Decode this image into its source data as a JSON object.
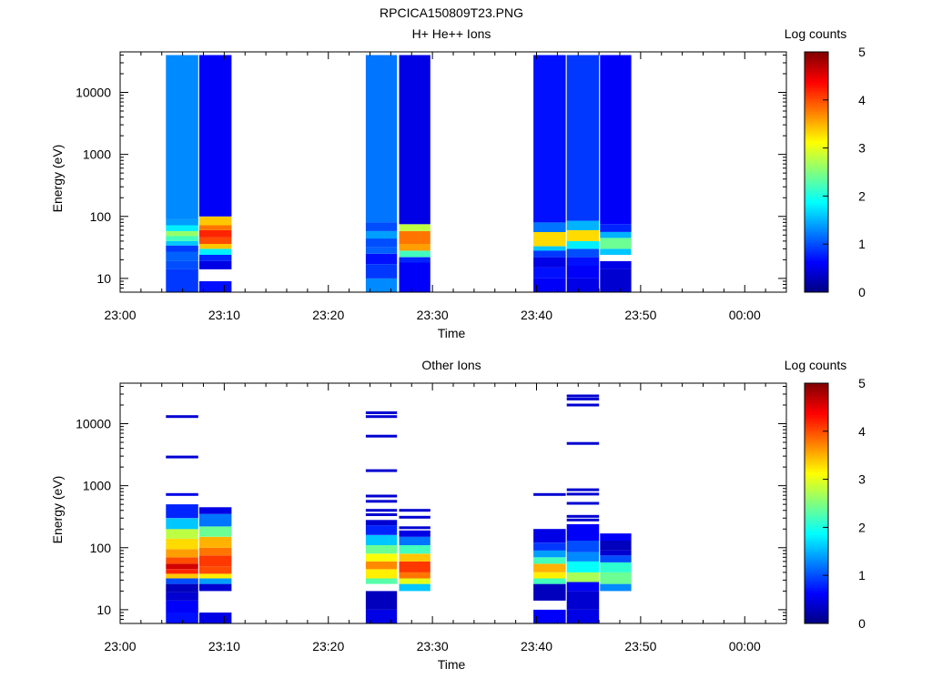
{
  "figure_title": "RPCICA150809T23.PNG",
  "panels": [
    {
      "title": "H+ He++ Ions",
      "ylabel": "Energy (eV)",
      "xlabel": "Time",
      "colorbar_label": "Log counts",
      "xticks": [
        "23:00",
        "23:10",
        "23:20",
        "23:30",
        "23:40",
        "23:50",
        "00:00"
      ],
      "yticks": [
        "10",
        "100",
        "1000",
        "10000"
      ],
      "cticks": [
        "0",
        "1",
        "2",
        "3",
        "4",
        "5"
      ]
    },
    {
      "title": "Other Ions",
      "ylabel": "Energy (eV)",
      "xlabel": "Time",
      "colorbar_label": "Log counts",
      "xticks": [
        "23:00",
        "23:10",
        "23:20",
        "23:30",
        "23:40",
        "23:50",
        "00:00"
      ],
      "yticks": [
        "10",
        "100",
        "1000",
        "10000"
      ],
      "cticks": [
        "0",
        "1",
        "2",
        "3",
        "4",
        "5"
      ]
    }
  ],
  "chart_data": [
    {
      "type": "heatmap",
      "title": "H+ He++ Ions",
      "xlabel": "Time",
      "ylabel": "Energy (eV)",
      "colorbar_label": "Log counts",
      "xlim_minutes_after_23_00": [
        0,
        64
      ],
      "ylim": [
        6,
        45000
      ],
      "yscale": "log",
      "zlim": [
        0,
        5
      ],
      "colormap": "jet",
      "columns": [
        {
          "time_start": "23:04.4",
          "time_end": "23:07.5",
          "cells": [
            [
              6,
              14,
              0.9
            ],
            [
              14,
              19,
              1.0
            ],
            [
              19,
              27,
              1.1
            ],
            [
              27,
              34,
              0.9
            ],
            [
              34,
              40,
              1.6
            ],
            [
              40,
              48,
              2.2
            ],
            [
              48,
              58,
              2.6
            ],
            [
              58,
              72,
              1.8
            ],
            [
              72,
              90,
              1.4
            ],
            [
              90,
              40000,
              1.3
            ]
          ]
        },
        {
          "time_start": "23:07.6",
          "time_end": "23:10.7",
          "cells": [
            [
              6,
              9,
              0.7
            ],
            [
              9,
              14,
              -1
            ],
            [
              14,
              19,
              0.5
            ],
            [
              19,
              24,
              0.8
            ],
            [
              24,
              30,
              1.8
            ],
            [
              30,
              36,
              3.4
            ],
            [
              36,
              46,
              4.0
            ],
            [
              46,
              60,
              4.2
            ],
            [
              60,
              72,
              3.8
            ],
            [
              72,
              100,
              3.4
            ],
            [
              100,
              40000,
              0.6
            ]
          ]
        },
        {
          "time_start": "23:23.6",
          "time_end": "23:26.6",
          "cells": [
            [
              6,
              10,
              1.3
            ],
            [
              10,
              17,
              0.9
            ],
            [
              17,
              25,
              0.7
            ],
            [
              25,
              32,
              1.1
            ],
            [
              32,
              44,
              1.0
            ],
            [
              44,
              58,
              1.4
            ],
            [
              58,
              80,
              1.0
            ],
            [
              80,
              40000,
              1.2
            ]
          ]
        },
        {
          "time_start": "23:26.8",
          "time_end": "23:29.8",
          "cells": [
            [
              6,
              18,
              0.6
            ],
            [
              18,
              22,
              0.8
            ],
            [
              22,
              28,
              2.2
            ],
            [
              28,
              36,
              3.6
            ],
            [
              36,
              58,
              3.8
            ],
            [
              58,
              75,
              2.8
            ],
            [
              75,
              40000,
              0.5
            ]
          ]
        },
        {
          "time_start": "23:39.7",
          "time_end": "23:42.8",
          "cells": [
            [
              6,
              10,
              0.6
            ],
            [
              10,
              15,
              0.7
            ],
            [
              15,
              22,
              0.5
            ],
            [
              22,
              28,
              0.9
            ],
            [
              28,
              33,
              1.6
            ],
            [
              33,
              56,
              3.3
            ],
            [
              56,
              80,
              1.2
            ],
            [
              80,
              40000,
              0.7
            ]
          ]
        },
        {
          "time_start": "23:42.9",
          "time_end": "23:46.0",
          "cells": [
            [
              6,
              10,
              0.5
            ],
            [
              10,
              16,
              0.6
            ],
            [
              16,
              22,
              0.7
            ],
            [
              22,
              30,
              1.0
            ],
            [
              30,
              40,
              1.8
            ],
            [
              40,
              60,
              3.3
            ],
            [
              60,
              85,
              1.5
            ],
            [
              85,
              40000,
              0.9
            ]
          ]
        },
        {
          "time_start": "23:46.1",
          "time_end": "23:49.1",
          "cells": [
            [
              6,
              14,
              0.4
            ],
            [
              14,
              19,
              0.5
            ],
            [
              19,
              24,
              -1
            ],
            [
              24,
              30,
              1.6
            ],
            [
              30,
              45,
              2.4
            ],
            [
              45,
              56,
              1.5
            ],
            [
              56,
              75,
              0.8
            ],
            [
              75,
              40000,
              0.6
            ]
          ]
        }
      ]
    },
    {
      "type": "heatmap",
      "title": "Other Ions",
      "xlabel": "Time",
      "ylabel": "Energy (eV)",
      "colorbar_label": "Log counts",
      "xlim_minutes_after_23_00": [
        0,
        64
      ],
      "ylim": [
        6,
        45000
      ],
      "yscale": "log",
      "zlim": [
        0,
        5
      ],
      "colormap": "jet",
      "columns": [
        {
          "time_start": "23:04.4",
          "time_end": "23:07.5",
          "cells": [
            [
              6,
              9,
              0.7
            ],
            [
              9,
              14,
              0.6
            ],
            [
              14,
              19,
              0.4
            ],
            [
              19,
              26,
              0.3
            ],
            [
              26,
              32,
              1.0
            ],
            [
              32,
              38,
              3.4
            ],
            [
              38,
              45,
              4.2
            ],
            [
              45,
              55,
              4.6
            ],
            [
              55,
              70,
              4.0
            ],
            [
              70,
              95,
              3.6
            ],
            [
              95,
              140,
              3.3
            ],
            [
              140,
              200,
              2.8
            ],
            [
              200,
              300,
              1.6
            ],
            [
              300,
              500,
              0.8
            ]
          ]
        },
        {
          "time_start": "23:07.6",
          "time_end": "23:10.7",
          "cells": [
            [
              6,
              9,
              0.5
            ],
            [
              20,
              26,
              0.4
            ],
            [
              26,
              32,
              1.4
            ],
            [
              32,
              38,
              3.2
            ],
            [
              38,
              50,
              4.0
            ],
            [
              50,
              75,
              4.1
            ],
            [
              75,
              100,
              3.8
            ],
            [
              100,
              150,
              3.5
            ],
            [
              150,
              220,
              2.4
            ],
            [
              220,
              350,
              1.2
            ],
            [
              350,
              450,
              0.5
            ]
          ]
        },
        {
          "time_start": "23:23.6",
          "time_end": "23:26.6",
          "cells": [
            [
              6,
              10,
              0.5
            ],
            [
              10,
              20,
              0.3
            ],
            [
              26,
              32,
              2.3
            ],
            [
              32,
              45,
              3.2
            ],
            [
              45,
              60,
              3.7
            ],
            [
              60,
              80,
              3.1
            ],
            [
              80,
              110,
              2.4
            ],
            [
              110,
              160,
              1.6
            ],
            [
              160,
              230,
              0.8
            ],
            [
              230,
              280,
              0.4
            ]
          ]
        },
        {
          "time_start": "23:26.8",
          "time_end": "23:29.8",
          "cells": [
            [
              20,
              26,
              1.6
            ],
            [
              26,
              32,
              3.0
            ],
            [
              32,
              40,
              3.8
            ],
            [
              40,
              60,
              4.1
            ],
            [
              60,
              80,
              3.4
            ],
            [
              80,
              110,
              2.2
            ],
            [
              110,
              150,
              1.2
            ],
            [
              150,
              190,
              0.5
            ]
          ]
        },
        {
          "time_start": "23:39.7",
          "time_end": "23:42.8",
          "cells": [
            [
              6,
              10,
              0.6
            ],
            [
              14,
              26,
              0.3
            ],
            [
              26,
              32,
              2.2
            ],
            [
              32,
              40,
              3.2
            ],
            [
              40,
              55,
              3.5
            ],
            [
              55,
              70,
              2.2
            ],
            [
              70,
              90,
              1.4
            ],
            [
              90,
              120,
              0.9
            ],
            [
              120,
              200,
              0.5
            ]
          ]
        },
        {
          "time_start": "23:42.9",
          "time_end": "23:46.0",
          "cells": [
            [
              6,
              10,
              0.5
            ],
            [
              10,
              20,
              0.4
            ],
            [
              20,
              28,
              0.6
            ],
            [
              28,
              40,
              2.7
            ],
            [
              40,
              60,
              1.9
            ],
            [
              60,
              85,
              1.3
            ],
            [
              85,
              130,
              1.0
            ],
            [
              130,
              240,
              0.6
            ]
          ]
        },
        {
          "time_start": "23:46.1",
          "time_end": "23:49.1",
          "cells": [
            [
              20,
              26,
              1.3
            ],
            [
              26,
              40,
              2.4
            ],
            [
              40,
              58,
              2.1
            ],
            [
              58,
              75,
              1.0
            ],
            [
              75,
              90,
              0.4
            ],
            [
              90,
              130,
              0.3
            ],
            [
              130,
              170,
              0.6
            ]
          ]
        }
      ],
      "lines": [
        [
          "23:04.4",
          "23:07.5",
          13000,
          0.4
        ],
        [
          "23:04.4",
          "23:07.5",
          2900,
          0.4
        ],
        [
          "23:04.4",
          "23:07.5",
          720,
          0.5
        ],
        [
          "23:23.6",
          "23:26.6",
          15000,
          0.4
        ],
        [
          "23:23.6",
          "23:26.6",
          13000,
          0.4
        ],
        [
          "23:23.6",
          "23:26.6",
          6300,
          0.4
        ],
        [
          "23:23.6",
          "23:26.6",
          1750,
          0.4
        ],
        [
          "23:23.6",
          "23:26.6",
          680,
          0.4
        ],
        [
          "23:23.6",
          "23:26.6",
          560,
          0.4
        ],
        [
          "23:23.6",
          "23:26.6",
          400,
          0.4
        ],
        [
          "23:23.6",
          "23:26.6",
          340,
          0.4
        ],
        [
          "23:26.8",
          "23:29.8",
          400,
          0.4
        ],
        [
          "23:26.8",
          "23:29.8",
          310,
          0.4
        ],
        [
          "23:26.8",
          "23:29.8",
          210,
          0.4
        ],
        [
          "23:39.7",
          "23:42.8",
          720,
          0.4
        ],
        [
          "23:42.9",
          "23:46.0",
          28000,
          0.4
        ],
        [
          "23:42.9",
          "23:46.0",
          25000,
          0.4
        ],
        [
          "23:42.9",
          "23:46.0",
          20000,
          0.4
        ],
        [
          "23:42.9",
          "23:46.0",
          4800,
          0.4
        ],
        [
          "23:42.9",
          "23:46.0",
          860,
          0.4
        ],
        [
          "23:42.9",
          "23:46.0",
          730,
          0.4
        ],
        [
          "23:42.9",
          "23:46.0",
          520,
          0.4
        ],
        [
          "23:42.9",
          "23:46.0",
          320,
          0.4
        ],
        [
          "23:42.9",
          "23:46.0",
          280,
          0.4
        ]
      ]
    }
  ]
}
